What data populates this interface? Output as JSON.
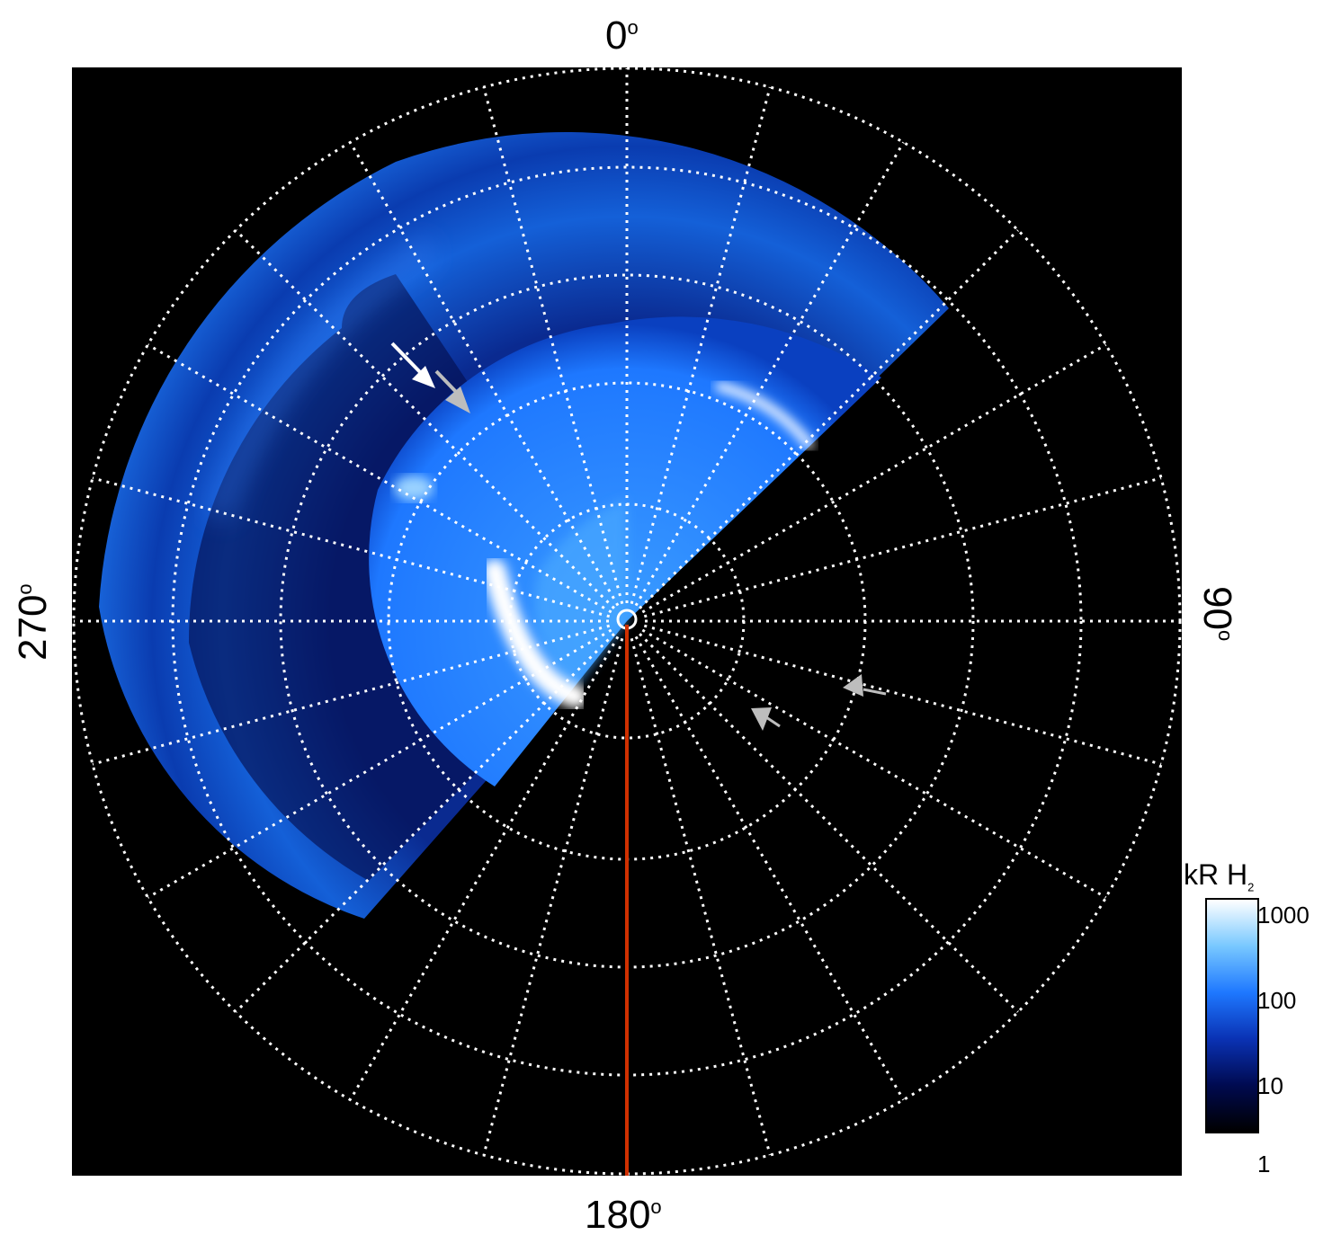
{
  "labels": {
    "top": "0",
    "right": "90",
    "bottom": "180",
    "left": "270",
    "degree_symbol": "o"
  },
  "colorbar": {
    "title_main": "kR H",
    "title_sub": "2",
    "ticks": [
      "1000",
      "100",
      "10",
      "1"
    ],
    "scale": "log",
    "range": [
      1,
      1000
    ],
    "colors": [
      "#000000",
      "#000a50",
      "#0a32b4",
      "#1e78ff",
      "#78c8ff",
      "#ffffff"
    ]
  },
  "colors": {
    "grid": "#ffffff",
    "meridian_line": "#d03000",
    "arrow_white": "#ffffff",
    "arrow_gray": "#bdbdbd"
  }
}
